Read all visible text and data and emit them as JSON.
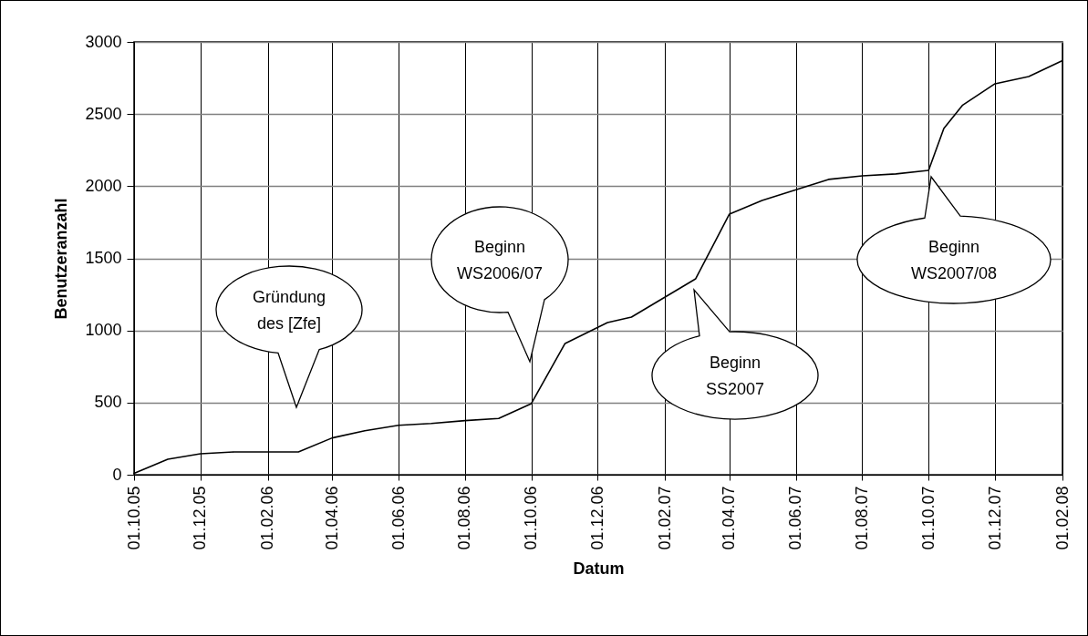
{
  "chart_data": {
    "type": "line",
    "xlabel": "Datum",
    "ylabel": "Benutzeranzahl",
    "x": [
      "2005-10-01",
      "2005-11-01",
      "2005-12-01",
      "2006-01-01",
      "2006-02-01",
      "2006-03-01",
      "2006-04-01",
      "2006-05-01",
      "2006-06-01",
      "2006-07-01",
      "2006-08-01",
      "2006-09-01",
      "2006-10-01",
      "2006-11-01",
      "2006-12-10",
      "2007-01-01",
      "2007-03-01",
      "2007-04-01",
      "2007-05-01",
      "2007-07-01",
      "2007-08-01",
      "2007-09-01",
      "2007-10-01",
      "2007-10-15",
      "2007-11-01",
      "2007-12-01",
      "2008-01-01",
      "2008-02-01"
    ],
    "series": [
      {
        "color": "#000000",
        "values": [
          10,
          107,
          145,
          158,
          158,
          158,
          255,
          305,
          343,
          355,
          375,
          390,
          493,
          910,
          1055,
          1093,
          1358,
          1807,
          1901,
          2047,
          2072,
          2085,
          2110,
          2400,
          2560,
          2710,
          2760,
          2870
        ]
      }
    ],
    "xlim": [
      "2005-10-01",
      "2008-02-01"
    ],
    "xticks": [
      {
        "value": "2005-10-01",
        "label": "01.10.05"
      },
      {
        "value": "2005-12-01",
        "label": "01.12.05"
      },
      {
        "value": "2006-02-01",
        "label": "01.02.06"
      },
      {
        "value": "2006-04-01",
        "label": "01.04.06"
      },
      {
        "value": "2006-06-01",
        "label": "01.06.06"
      },
      {
        "value": "2006-08-01",
        "label": "01.08.06"
      },
      {
        "value": "2006-10-01",
        "label": "01.10.06"
      },
      {
        "value": "2006-12-01",
        "label": "01.12.06"
      },
      {
        "value": "2007-02-01",
        "label": "01.02.07"
      },
      {
        "value": "2007-04-01",
        "label": "01.04.07"
      },
      {
        "value": "2007-06-01",
        "label": "01.06.07"
      },
      {
        "value": "2007-08-01",
        "label": "01.08.07"
      },
      {
        "value": "2007-10-01",
        "label": "01.10.07"
      },
      {
        "value": "2007-12-01",
        "label": "01.12.07"
      },
      {
        "value": "2008-02-01",
        "label": "01.02.08"
      }
    ],
    "ylim": [
      0,
      3000
    ],
    "yticks": [
      0,
      500,
      1000,
      1500,
      2000,
      2500,
      3000
    ],
    "grid": true,
    "marker": "none",
    "line_style": "solid",
    "annotations": [
      "Gründung\ndes [Zfe]",
      "Beginn\nWS2006/07",
      "Beginn\nSS2007",
      "Beginn\nWS2007/08"
    ]
  }
}
